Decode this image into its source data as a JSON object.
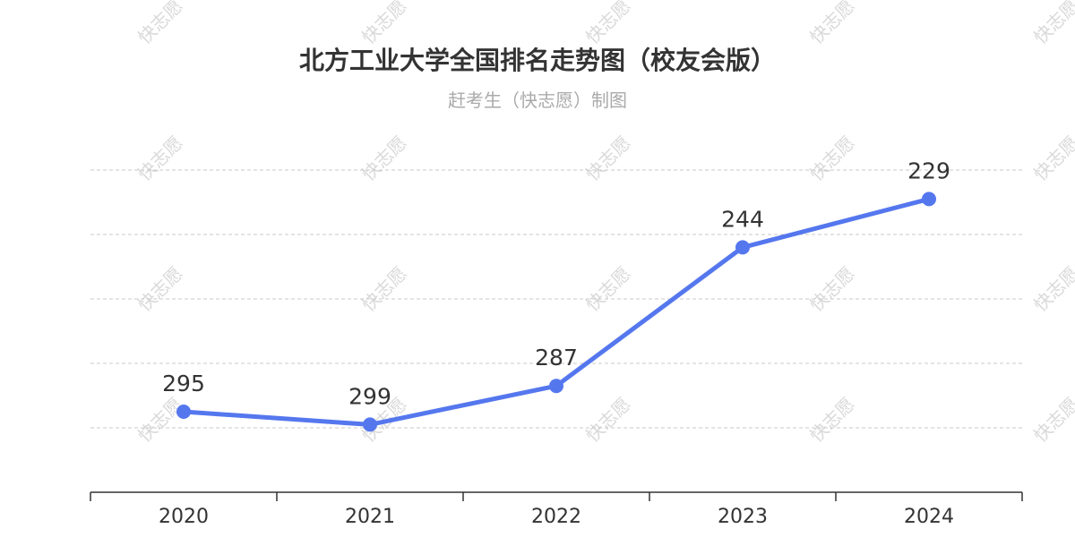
{
  "chart_data": {
    "type": "line",
    "title": "北方工业大学全国排名走势图（校友会版）",
    "subtitle": "赶考生（快志愿）制图",
    "categories": [
      "2020",
      "2021",
      "2022",
      "2023",
      "2024"
    ],
    "values": [
      295,
      299,
      287,
      244,
      229
    ],
    "y_axis": "inverted rank",
    "ylim": [
      320,
      220
    ],
    "grid": true,
    "y_tick_labels": false,
    "color": "#5577ee"
  },
  "watermark": "快志愿"
}
